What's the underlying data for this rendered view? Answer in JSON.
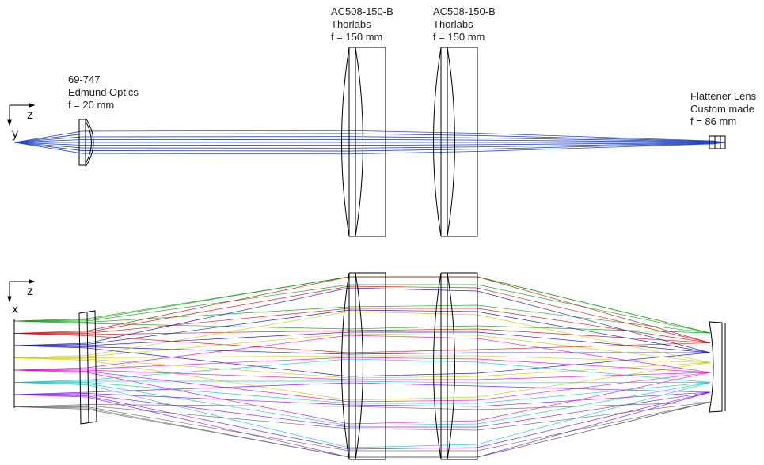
{
  "labels": {
    "edmund": {
      "line1": "69-747",
      "line2": "Edmund Optics",
      "line3": "f = 20 mm"
    },
    "thorlabs_1": {
      "line1": "AC508-150-B",
      "line2": "Thorlabs",
      "line3": "f = 150 mm"
    },
    "thorlabs_2": {
      "line1": "AC508-150-B",
      "line2": "Thorlabs",
      "line3": "f = 150 mm"
    },
    "flattener": {
      "line1": "Flattener Lens",
      "line2": "Custom made",
      "line3": "f = 86 mm"
    }
  },
  "axes": {
    "top": {
      "horizontal": "z",
      "vertical": "y"
    },
    "bottom": {
      "horizontal": "z",
      "vertical": "x"
    }
  },
  "ray_colors": [
    "#00a000",
    "#d40000",
    "#0000c8",
    "#c8c800",
    "#e000e0",
    "#00c8c8",
    "#8000ff",
    "#606060"
  ]
}
